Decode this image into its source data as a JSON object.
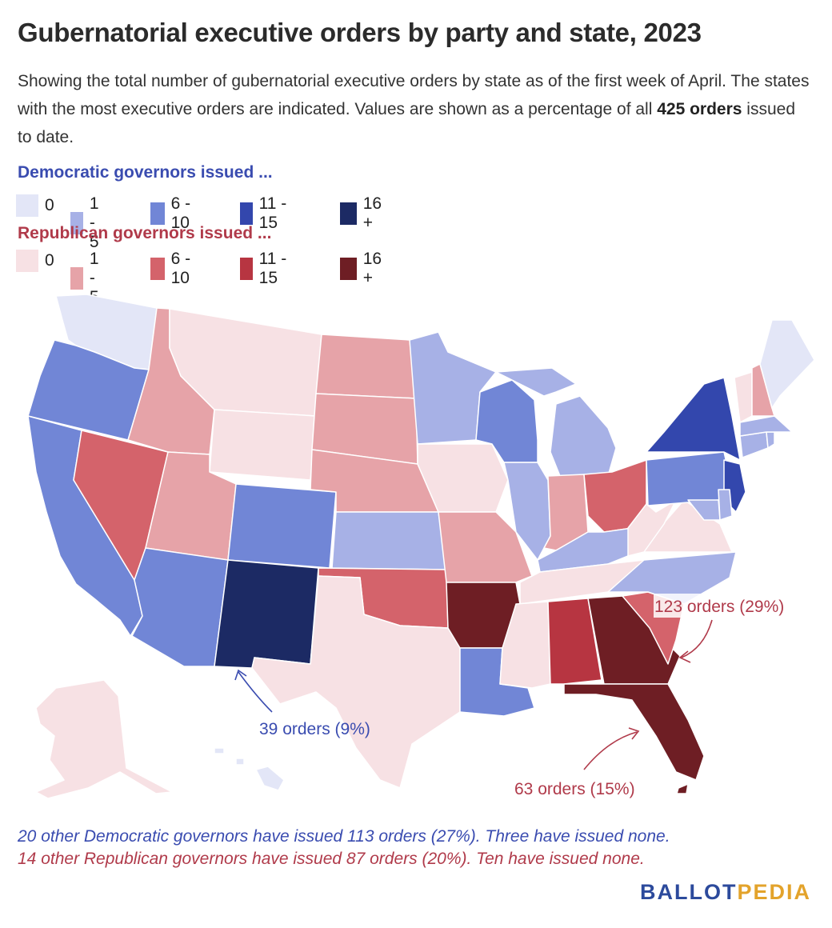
{
  "title": "Gubernatorial executive orders by party and state, 2023",
  "subtitle_pre": "Showing the total number of gubernatorial executive orders by state as of the first week of April. The states with the most executive orders are indicated. Values are shown as a percentage of all ",
  "subtitle_bold": "425 orders",
  "subtitle_post": " issued to date.",
  "legend": {
    "dem_heading": "Democratic governors issued ...",
    "rep_heading": "Republican governors issued ...",
    "dem_items": [
      {
        "label": "0",
        "color": "#e3e6f7"
      },
      {
        "label": "1 - 5",
        "color": "#a7b1e6"
      },
      {
        "label": "6 - 10",
        "color": "#7186d6"
      },
      {
        "label": "11 - 15",
        "color": "#3347ad"
      },
      {
        "label": "16 +",
        "color": "#1c2a64"
      }
    ],
    "rep_items": [
      {
        "label": "0",
        "color": "#f7e1e4"
      },
      {
        "label": "1 - 5",
        "color": "#e6a3a8"
      },
      {
        "label": "6 - 10",
        "color": "#d4636b"
      },
      {
        "label": "11 - 15",
        "color": "#b73541"
      },
      {
        "label": "16 +",
        "color": "#6e1e24"
      }
    ]
  },
  "annotations": {
    "nm": "39 orders (9%)",
    "ga": "123 orders (29%)",
    "fl": "63 orders (15%)"
  },
  "notes": {
    "dem": "20 other Democratic governors have issued 113 orders (27%). Three have issued none.",
    "rep": "14 other Republican governors have issued 87 orders (20%). Ten have issued none."
  },
  "brand": {
    "part1": "BALLOT",
    "part2": "PEDIA"
  },
  "states": {
    "WA": "#e3e6f7",
    "OR": "#7186d6",
    "CA": "#7186d6",
    "NV": "#d4636b",
    "ID": "#e6a3a8",
    "MT": "#f7e1e4",
    "WY": "#f7e1e4",
    "UT": "#e6a3a8",
    "AZ": "#7186d6",
    "CO": "#7186d6",
    "NM": "#1c2a64",
    "ND": "#e6a3a8",
    "SD": "#e6a3a8",
    "NE": "#e6a3a8",
    "KS": "#a7b1e6",
    "OK": "#d4636b",
    "TX": "#f7e1e4",
    "MN": "#a7b1e6",
    "IA": "#f7e1e4",
    "MO": "#e6a3a8",
    "AR": "#6e1e24",
    "LA": "#7186d6",
    "WI": "#7186d6",
    "IL": "#a7b1e6",
    "MI": "#a7b1e6",
    "IN": "#e6a3a8",
    "OH": "#d4636b",
    "KY": "#a7b1e6",
    "TN": "#f7e1e4",
    "MS": "#f7e1e4",
    "AL": "#b73541",
    "GA": "#6e1e24",
    "FL": "#6e1e24",
    "SC": "#d4636b",
    "NC": "#a7b1e6",
    "VA": "#f7e1e4",
    "WV": "#f7e1e4",
    "PA": "#7186d6",
    "NY": "#3347ad",
    "NJ": "#3347ad",
    "MD": "#a7b1e6",
    "DE": "#a7b1e6",
    "CT": "#a7b1e6",
    "RI": "#a7b1e6",
    "MA": "#a7b1e6",
    "VT": "#f7e1e4",
    "NH": "#e6a3a8",
    "ME": "#e3e6f7",
    "AK": "#f7e1e4",
    "HI": "#e3e6f7"
  }
}
